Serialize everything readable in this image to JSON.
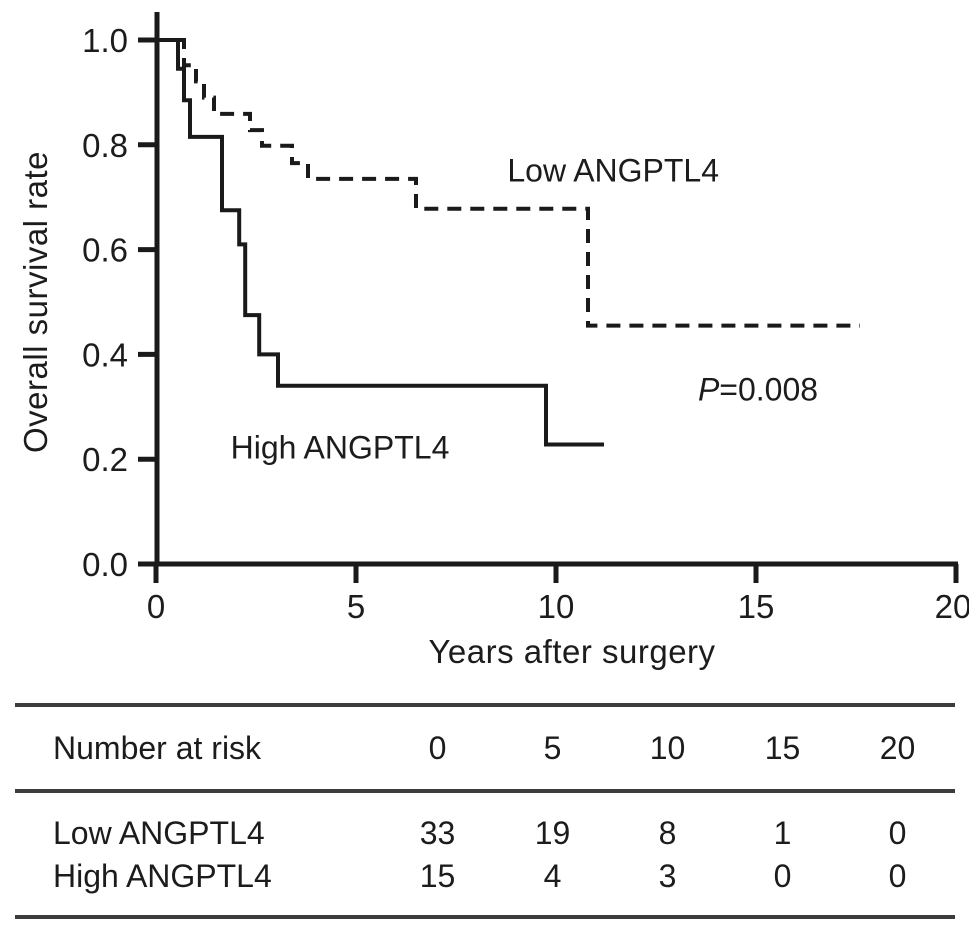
{
  "figure": {
    "background": "#ffffff",
    "ink": "#1a1a1a",
    "rule_color": "#3c3c3c"
  },
  "chart_data": {
    "type": "line",
    "subtype": "kaplan-meier-step",
    "title": "",
    "xlabel": "Years after surgery",
    "ylabel": "Overall survival rate",
    "xlim": [
      0,
      20
    ],
    "ylim": [
      0.0,
      1.0
    ],
    "grid": "off",
    "legend": "inline-annotations",
    "x_axis": {
      "ticks": [
        0,
        5,
        10,
        15,
        20
      ],
      "tick_labels": [
        "0",
        "5",
        "10",
        "15",
        "20"
      ]
    },
    "y_axis": {
      "ticks": [
        1.0,
        0.8,
        0.6,
        0.4,
        0.2,
        0.0
      ],
      "tick_labels": [
        "1.0",
        "0.8",
        "0.6",
        "0.4",
        "0.2",
        "0.0"
      ]
    },
    "series": [
      {
        "name": "Low ANGPTL4",
        "line_style": "dashed",
        "color": "#1a1a1a",
        "points": [
          [
            0,
            1.0
          ],
          [
            0.7,
            1.0
          ],
          [
            0.7,
            0.952
          ],
          [
            1.0,
            0.952
          ],
          [
            1.0,
            0.921
          ],
          [
            1.2,
            0.921
          ],
          [
            1.2,
            0.89
          ],
          [
            1.45,
            0.89
          ],
          [
            1.45,
            0.859
          ],
          [
            2.35,
            0.859
          ],
          [
            2.35,
            0.828
          ],
          [
            2.65,
            0.828
          ],
          [
            2.65,
            0.798
          ],
          [
            3.4,
            0.798
          ],
          [
            3.4,
            0.765
          ],
          [
            3.8,
            0.765
          ],
          [
            3.8,
            0.735
          ],
          [
            6.5,
            0.735
          ],
          [
            6.5,
            0.678
          ],
          [
            10.8,
            0.678
          ],
          [
            10.8,
            0.455
          ],
          [
            17.6,
            0.455
          ]
        ]
      },
      {
        "name": "High ANGPTL4",
        "line_style": "solid",
        "color": "#1a1a1a",
        "points": [
          [
            0,
            1.0
          ],
          [
            0.55,
            1.0
          ],
          [
            0.55,
            0.945
          ],
          [
            0.7,
            0.945
          ],
          [
            0.7,
            0.885
          ],
          [
            0.85,
            0.885
          ],
          [
            0.85,
            0.815
          ],
          [
            1.65,
            0.815
          ],
          [
            1.65,
            0.675
          ],
          [
            2.08,
            0.675
          ],
          [
            2.08,
            0.61
          ],
          [
            2.23,
            0.61
          ],
          [
            2.23,
            0.475
          ],
          [
            2.58,
            0.475
          ],
          [
            2.58,
            0.4
          ],
          [
            3.05,
            0.4
          ],
          [
            3.05,
            0.34
          ],
          [
            9.75,
            0.34
          ],
          [
            9.75,
            0.228
          ],
          [
            11.2,
            0.228
          ]
        ]
      }
    ],
    "annotations": {
      "low_label": {
        "text": "Low ANGPTL4",
        "x_year": 11.43,
        "y_value": 0.75
      },
      "high_label": {
        "text": "High ANGPTL4",
        "x_year": 4.6,
        "y_value": 0.221
      },
      "p_value": {
        "italic": "P",
        "text": "=0.008",
        "x_year": 15.05,
        "y_value": 0.332
      }
    }
  },
  "risk_table": {
    "header_label": "Number at risk",
    "time_points": [
      "0",
      "5",
      "10",
      "15",
      "20"
    ],
    "rows": [
      {
        "label": "Low ANGPTL4",
        "counts": [
          "33",
          "19",
          "8",
          "1",
          "0"
        ]
      },
      {
        "label": "High ANGPTL4",
        "counts": [
          "15",
          "4",
          "3",
          "0",
          "0"
        ]
      }
    ]
  }
}
